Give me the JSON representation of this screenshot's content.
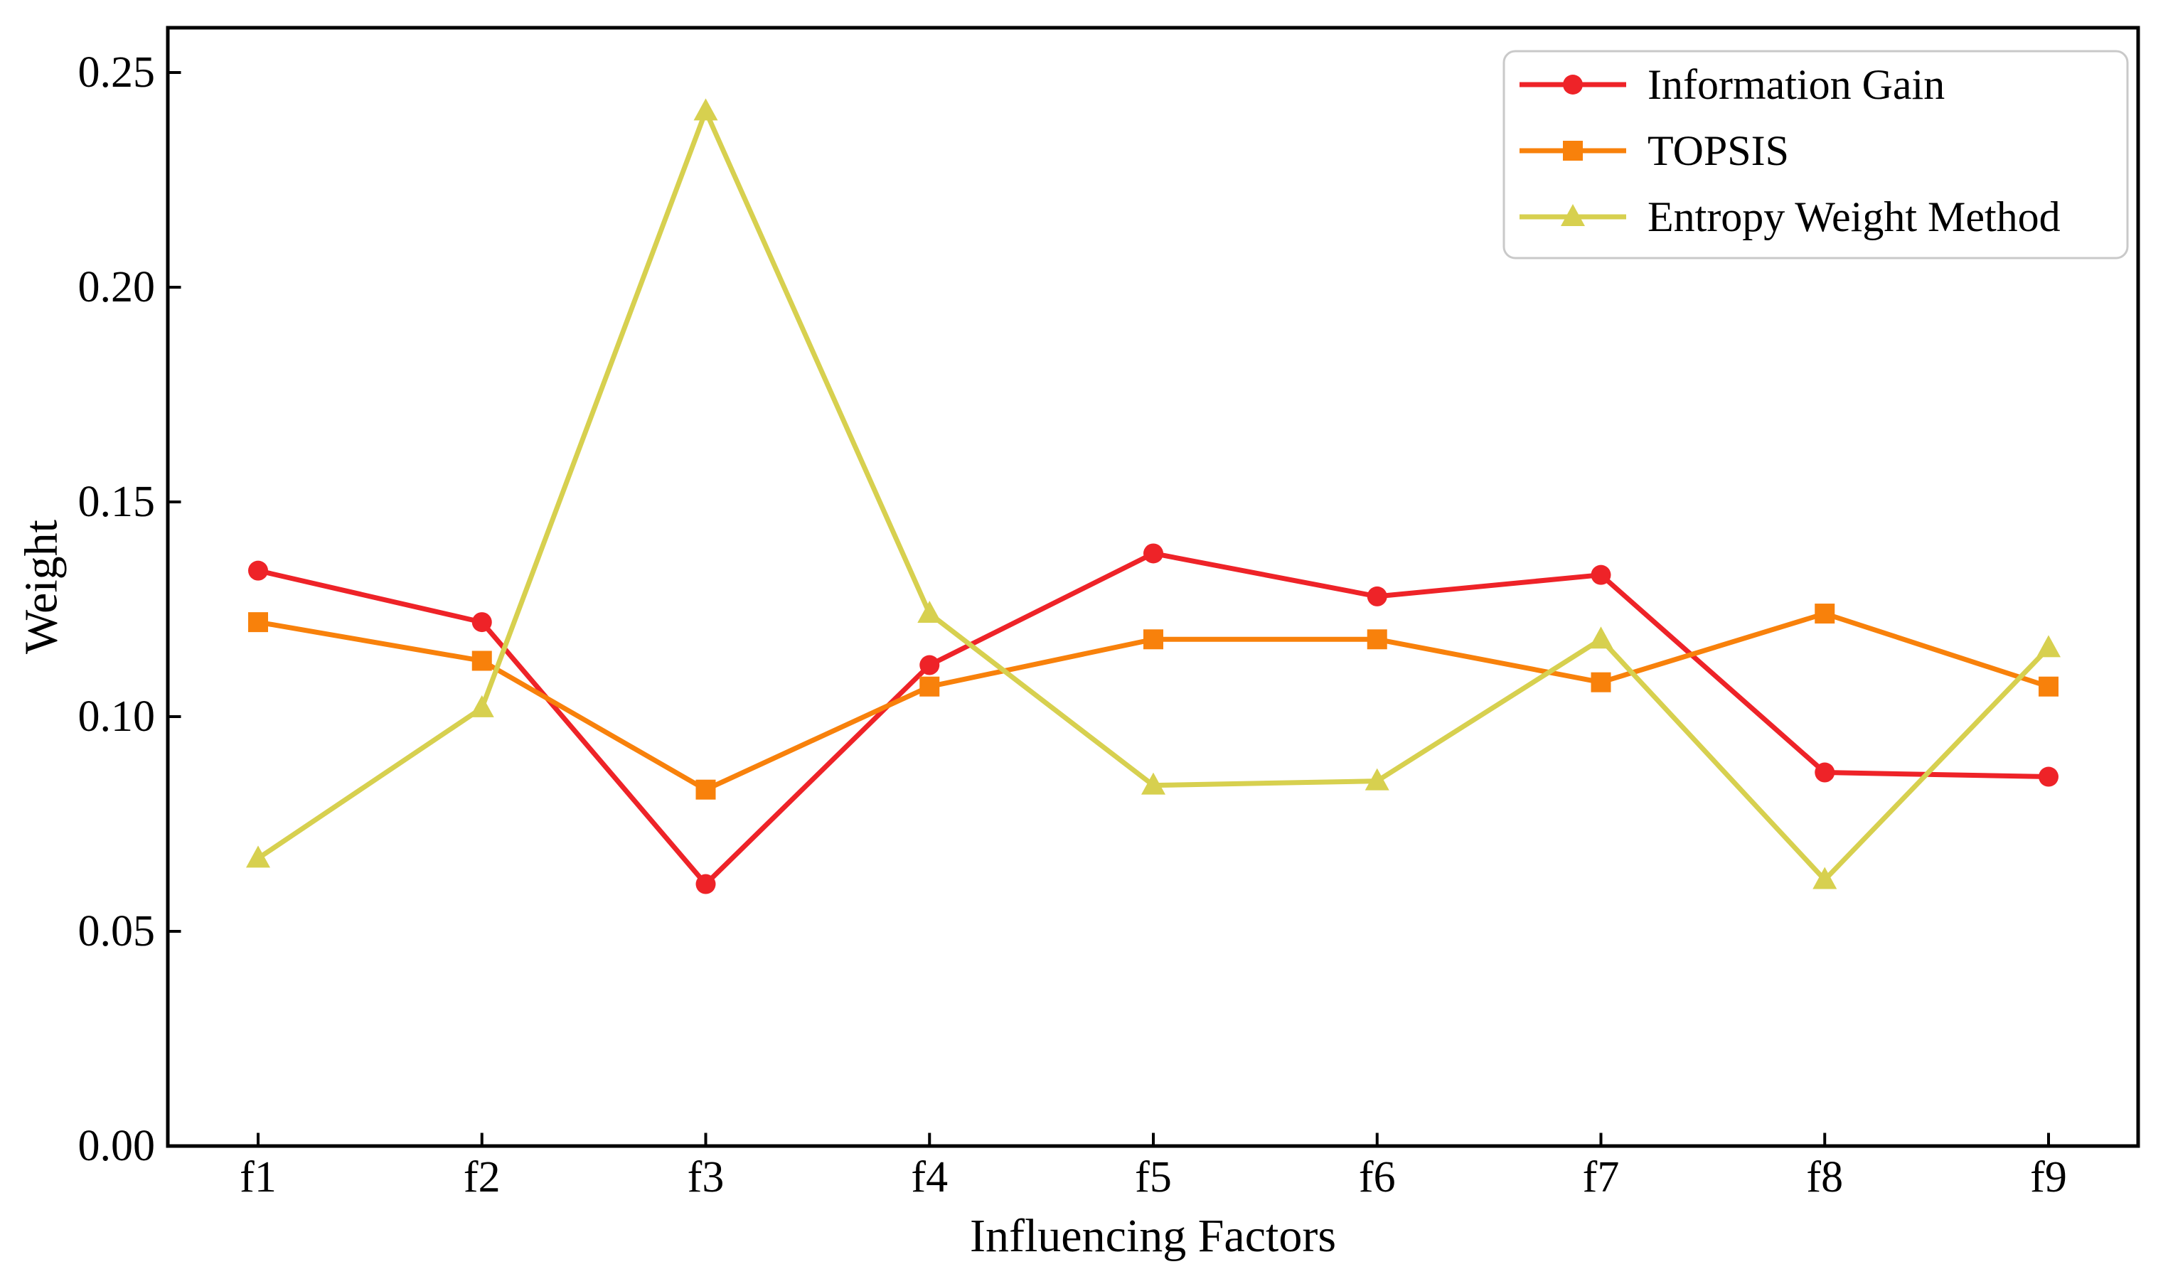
{
  "figure": {
    "background_color": "#ffffff",
    "axis_color": "#000000"
  },
  "chart_data": {
    "type": "line",
    "title": "",
    "xlabel": "Influencing Factors",
    "ylabel": "Weight",
    "categories": [
      "f1",
      "f2",
      "f3",
      "f4",
      "f5",
      "f6",
      "f7",
      "f8",
      "f9"
    ],
    "series": [
      {
        "name": "Information Gain",
        "color": "#ee2328",
        "marker": "circle",
        "values": [
          0.134,
          0.122,
          0.061,
          0.112,
          0.138,
          0.128,
          0.133,
          0.087,
          0.086
        ]
      },
      {
        "name": "TOPSIS",
        "color": "#f8810b",
        "marker": "square",
        "values": [
          0.122,
          0.113,
          0.083,
          0.107,
          0.118,
          0.118,
          0.108,
          0.124,
          0.107
        ]
      },
      {
        "name": "Entropy Weight Method",
        "color": "#d7d04f",
        "marker": "triangle",
        "values": [
          0.067,
          0.102,
          0.241,
          0.124,
          0.084,
          0.085,
          0.118,
          0.062,
          0.116
        ]
      }
    ],
    "ylim": [
      0.0,
      0.26
    ],
    "yticks": [
      0.0,
      0.05,
      0.1,
      0.15,
      0.2,
      0.25
    ],
    "ytick_labels": [
      "0.00",
      "0.05",
      "0.10",
      "0.15",
      "0.20",
      "0.25"
    ],
    "grid": false,
    "legend_position": "top-right",
    "legend_border_color": "#c9c9c9"
  }
}
